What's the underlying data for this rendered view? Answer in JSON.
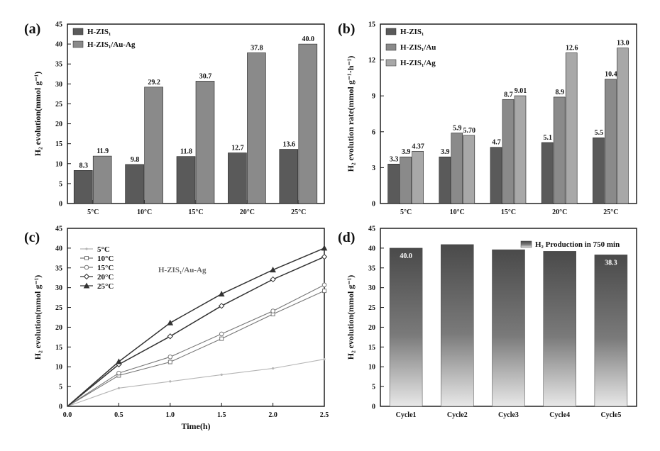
{
  "colors": {
    "bar_dark": "#5a5a5a",
    "bar_mid": "#8a8a8a",
    "bar_light": "#a8a8a8",
    "line_dark": "#333333",
    "line_mid": "#777777",
    "line_light": "#b5b5b5"
  },
  "chart_data": [
    {
      "panel": "(a)",
      "type": "bar",
      "categories": [
        "5°C",
        "10°C",
        "15°C",
        "20°C",
        "25°C"
      ],
      "series": [
        {
          "name": "H-ZIS₁",
          "values": [
            8.3,
            9.8,
            11.8,
            12.7,
            13.6
          ],
          "labels": [
            "8.3",
            "9.8",
            "11.8",
            "12.7",
            "13.6"
          ]
        },
        {
          "name": "H-ZIS₁/Au-Ag",
          "values": [
            11.9,
            29.2,
            30.7,
            37.8,
            40.0
          ],
          "labels": [
            "11.9",
            "29.2",
            "30.7",
            "37.8",
            "40.0"
          ]
        }
      ],
      "ylabel": "H₂ evolution(mmol g⁻¹)",
      "xlabel": "",
      "ylim": [
        0,
        45
      ],
      "yticks": [
        "0",
        "5",
        "10",
        "15",
        "20",
        "25",
        "30",
        "35",
        "40",
        "45"
      ],
      "legend_position": "top-left"
    },
    {
      "panel": "(b)",
      "type": "bar",
      "categories": [
        "5°C",
        "10°C",
        "15°C",
        "20°C",
        "25°C"
      ],
      "series": [
        {
          "name": "H-ZIS₁",
          "values": [
            3.3,
            3.9,
            4.7,
            5.1,
            5.5
          ],
          "labels": [
            "3.3",
            "3.9",
            "4.7",
            "5.1",
            "5.5"
          ]
        },
        {
          "name": "H-ZIS₁/Au",
          "values": [
            3.9,
            5.9,
            8.7,
            8.9,
            10.4
          ],
          "labels": [
            "3.9",
            "5.9",
            "8.7",
            "8.9",
            "10.4"
          ]
        },
        {
          "name": "H-ZIS₁/Ag",
          "values": [
            4.37,
            5.7,
            9.01,
            12.6,
            13.0
          ],
          "labels": [
            "4.37",
            "5.70",
            "9.01",
            "12.6",
            "13.0"
          ]
        }
      ],
      "ylabel": "H₂ evolution rate(mmol g⁻¹·h⁻¹)",
      "xlabel": "",
      "ylim": [
        0,
        15
      ],
      "yticks": [
        "0",
        "3",
        "6",
        "9",
        "12",
        "15"
      ],
      "legend_position": "top-left"
    },
    {
      "panel": "(c)",
      "type": "line",
      "x": [
        0,
        0.5,
        1.0,
        1.5,
        2.0,
        2.5
      ],
      "series": [
        {
          "name": "5°C",
          "values": [
            0,
            4.6,
            6.3,
            8.0,
            9.6,
            11.9
          ]
        },
        {
          "name": "10°C",
          "values": [
            0,
            7.8,
            11.2,
            17.1,
            23.3,
            29.2
          ]
        },
        {
          "name": "15°C",
          "values": [
            0,
            8.4,
            12.5,
            18.3,
            24.1,
            30.7
          ]
        },
        {
          "name": "20°C",
          "values": [
            0,
            10.6,
            17.7,
            25.4,
            32.1,
            37.8
          ]
        },
        {
          "name": "25°C",
          "values": [
            0,
            11.3,
            21.1,
            28.4,
            34.5,
            40.0
          ]
        }
      ],
      "annotation": "H-ZIS₁/Au-Ag",
      "xlabel": "Time(h)",
      "ylabel": "H₂ evolution(mmol g⁻¹)",
      "xlim": [
        0,
        2.5
      ],
      "ylim": [
        0,
        45
      ],
      "xticks": [
        "0.0",
        "0.5",
        "1.0",
        "1.5",
        "2.0",
        "2.5"
      ],
      "yticks": [
        "0",
        "5",
        "10",
        "15",
        "20",
        "25",
        "30",
        "35",
        "40",
        "45"
      ],
      "legend_position": "top-left"
    },
    {
      "panel": "(d)",
      "type": "bar",
      "categories": [
        "Cycle1",
        "Cycle2",
        "Cycle3",
        "Cycle4",
        "Cycle5"
      ],
      "values": [
        40.0,
        40.9,
        39.6,
        39.2,
        38.3
      ],
      "labels": [
        "40.0",
        "",
        "",
        "",
        "38.3"
      ],
      "legend": "H₂ Production in 750 min",
      "ylabel": "H₂ evolution(mmol g⁻¹)",
      "xlabel": "",
      "ylim": [
        0,
        45
      ],
      "yticks": [
        "0",
        "5",
        "10",
        "15",
        "20",
        "25",
        "30",
        "35",
        "40",
        "45"
      ],
      "legend_position": "top-right"
    }
  ]
}
